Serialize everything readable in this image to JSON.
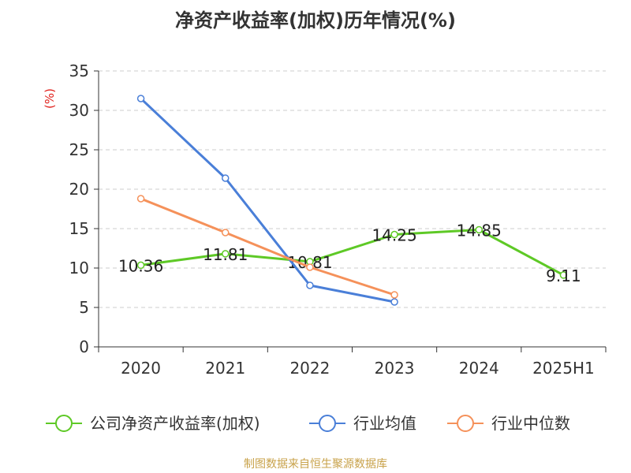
{
  "chart_data": {
    "type": "line",
    "title": "净资产收益率(加权)历年情况(%)",
    "ylabel": "(%)",
    "categories": [
      "2020",
      "2021",
      "2022",
      "2023",
      "2024",
      "2025H1"
    ],
    "ylim": [
      0,
      35
    ],
    "yticks": [
      "0",
      "5",
      "10",
      "15",
      "20",
      "25",
      "30",
      "35"
    ],
    "grid": true,
    "legend_position": "bottom",
    "series": [
      {
        "name": "公司净资产收益率(加权)",
        "color": "#5ec926",
        "values": [
          10.36,
          11.81,
          10.81,
          14.25,
          14.85,
          9.11
        ],
        "labels": [
          "10.36",
          "11.81",
          "10.81",
          "14.25",
          "14.85",
          "9.11"
        ]
      },
      {
        "name": "行业均值",
        "color": "#4a7fd8",
        "values": [
          31.5,
          21.4,
          7.8,
          5.7,
          null,
          null
        ]
      },
      {
        "name": "行业中位数",
        "color": "#f5915a",
        "values": [
          18.8,
          14.5,
          10.1,
          6.6,
          null,
          null
        ]
      }
    ]
  },
  "source": "制图数据来自恒生聚源数据库"
}
